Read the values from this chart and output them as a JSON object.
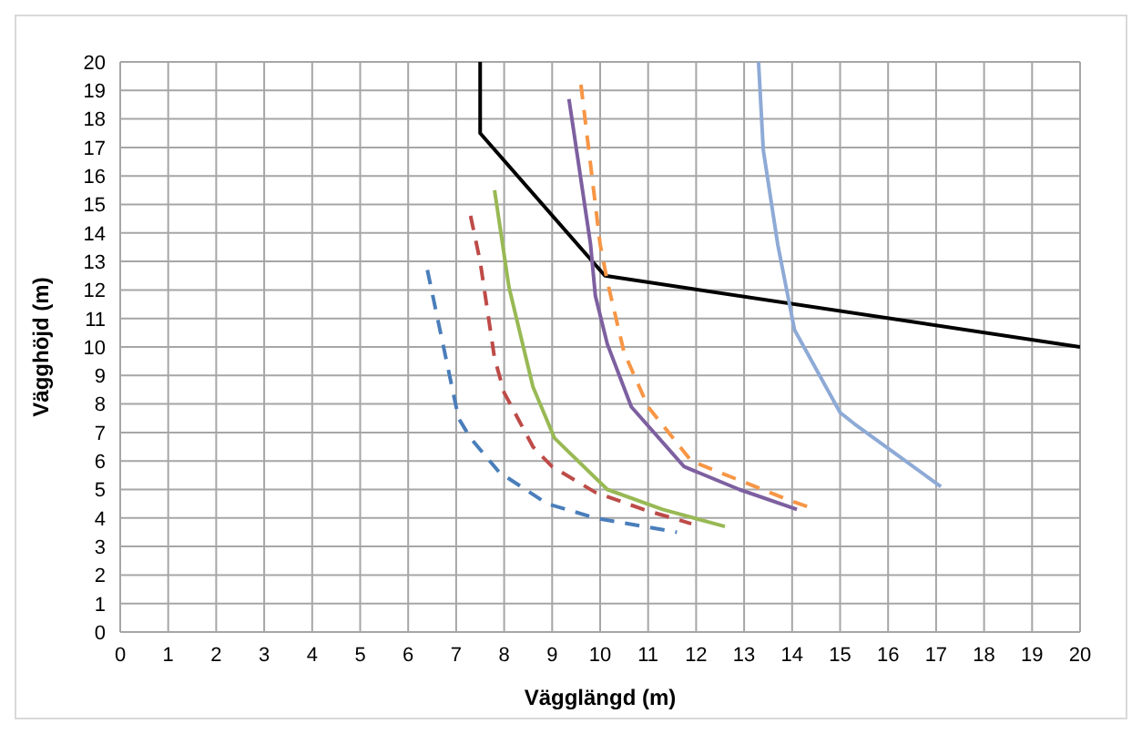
{
  "chart_data": {
    "type": "line",
    "xlabel": "Vägglängd (m)",
    "ylabel": "Vägghöjd (m)",
    "xlim": [
      0,
      20
    ],
    "ylim": [
      0,
      20
    ],
    "xticks": [
      0,
      1,
      2,
      3,
      4,
      5,
      6,
      7,
      8,
      9,
      10,
      11,
      12,
      13,
      14,
      15,
      16,
      17,
      18,
      19,
      20
    ],
    "yticks": [
      0,
      1,
      2,
      3,
      4,
      5,
      6,
      7,
      8,
      9,
      10,
      11,
      12,
      13,
      14,
      15,
      16,
      17,
      18,
      19,
      20
    ],
    "grid": true,
    "marker": "none",
    "series": [
      {
        "color": "#000000",
        "line_style": "solid",
        "x": [
          7.5,
          7.5,
          10.1,
          20
        ],
        "values": [
          20,
          17.5,
          12.5,
          10
        ]
      },
      {
        "color": "#4a7ebb",
        "line_style": "dashed",
        "x": [
          6.4,
          7.05,
          7.3,
          7.9,
          8.9,
          9.9,
          11.6
        ],
        "values": [
          12.7,
          7.5,
          6.8,
          5.6,
          4.5,
          4.0,
          3.5
        ]
      },
      {
        "color": "#be4b48",
        "line_style": "dashed",
        "x": [
          7.3,
          7.5,
          7.8,
          8.0,
          8.6,
          9.0,
          9.9,
          10.9,
          11.9
        ],
        "values": [
          14.6,
          13.0,
          9.6,
          8.4,
          6.5,
          5.8,
          4.9,
          4.3,
          3.8
        ]
      },
      {
        "color": "#98b954",
        "line_style": "solid",
        "x": [
          7.8,
          8.1,
          8.6,
          9.05,
          10.15,
          11.3,
          12.6
        ],
        "values": [
          15.5,
          12.1,
          8.6,
          6.8,
          5.0,
          4.3,
          3.7
        ]
      },
      {
        "color": "#7d60a0",
        "line_style": "solid",
        "x": [
          9.35,
          9.8,
          9.9,
          10.15,
          10.65,
          11.75,
          12.9,
          14.1
        ],
        "values": [
          18.7,
          13.6,
          11.8,
          10.1,
          7.9,
          5.8,
          5.0,
          4.3
        ]
      },
      {
        "color": "#f79646",
        "line_style": "dashed",
        "x": [
          9.6,
          10.0,
          10.15,
          10.5,
          11.0,
          11.9,
          13.9,
          14.4
        ],
        "values": [
          19.2,
          13.6,
          12.3,
          9.8,
          7.9,
          6.0,
          4.65,
          4.35
        ]
      },
      {
        "color": "#8eaad6",
        "line_style": "solid",
        "x": [
          13.3,
          13.4,
          13.7,
          14.05,
          15.0,
          15.3,
          17.1
        ],
        "values": [
          20,
          16.9,
          13.6,
          10.6,
          7.7,
          7.3,
          5.1
        ]
      }
    ]
  }
}
